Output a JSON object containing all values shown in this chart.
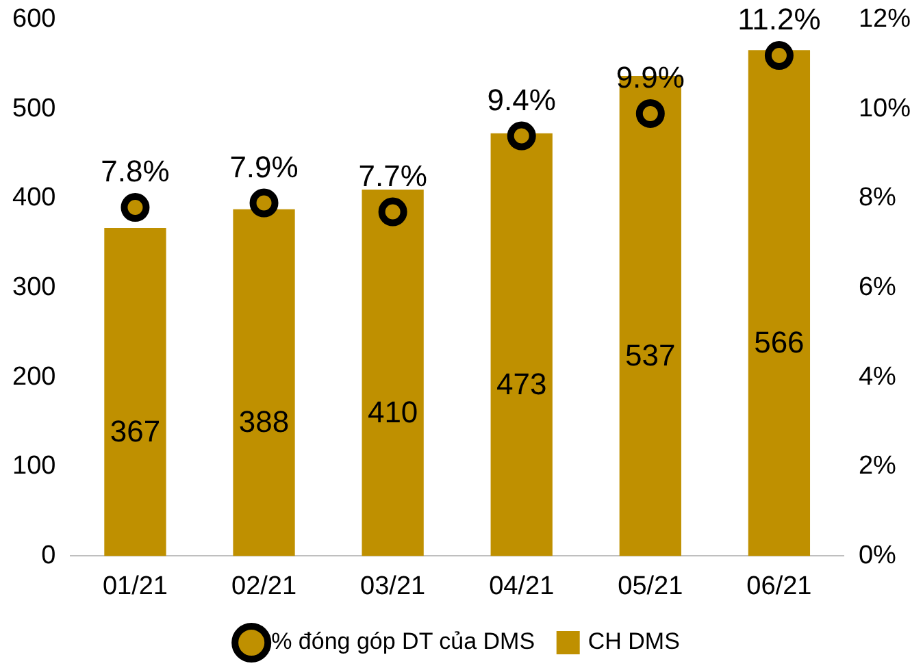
{
  "chart_data": {
    "type": "bar",
    "categories": [
      "01/21",
      "02/21",
      "03/21",
      "04/21",
      "05/21",
      "06/21"
    ],
    "series": [
      {
        "name": "CH DMS",
        "color": "#bf9000",
        "values": [
          367,
          388,
          410,
          473,
          537,
          566
        ]
      },
      {
        "name": "% đóng góp DT của DMS",
        "type": "scatter",
        "axis": "y2",
        "color": "#000000",
        "x": [
          "01/21",
          "02/21",
          "03/21",
          "04/21",
          "05/21",
          "06/21"
        ],
        "values": [
          7.8,
          7.9,
          7.7,
          9.4,
          9.9,
          11.2
        ],
        "value_labels": [
          "7.8%",
          "7.9%",
          "7.7%",
          "9.4%",
          "9.9%",
          "11.2%"
        ]
      }
    ],
    "ylim": [
      0,
      600
    ],
    "yticks": [
      0,
      100,
      200,
      300,
      400,
      500,
      600
    ],
    "y2lim": [
      0,
      12
    ],
    "y2ticks": [
      {
        "value": 0,
        "label": "0%"
      },
      {
        "value": 2,
        "label": "2%"
      },
      {
        "value": 4,
        "label": "4%"
      },
      {
        "value": 6,
        "label": "6%"
      },
      {
        "value": 8,
        "label": "8%"
      },
      {
        "value": 10,
        "label": "10%"
      },
      {
        "value": 12,
        "label": "12%"
      }
    ],
    "data_labels": true,
    "grid": false,
    "legend": "bottom",
    "marker": "circle"
  }
}
